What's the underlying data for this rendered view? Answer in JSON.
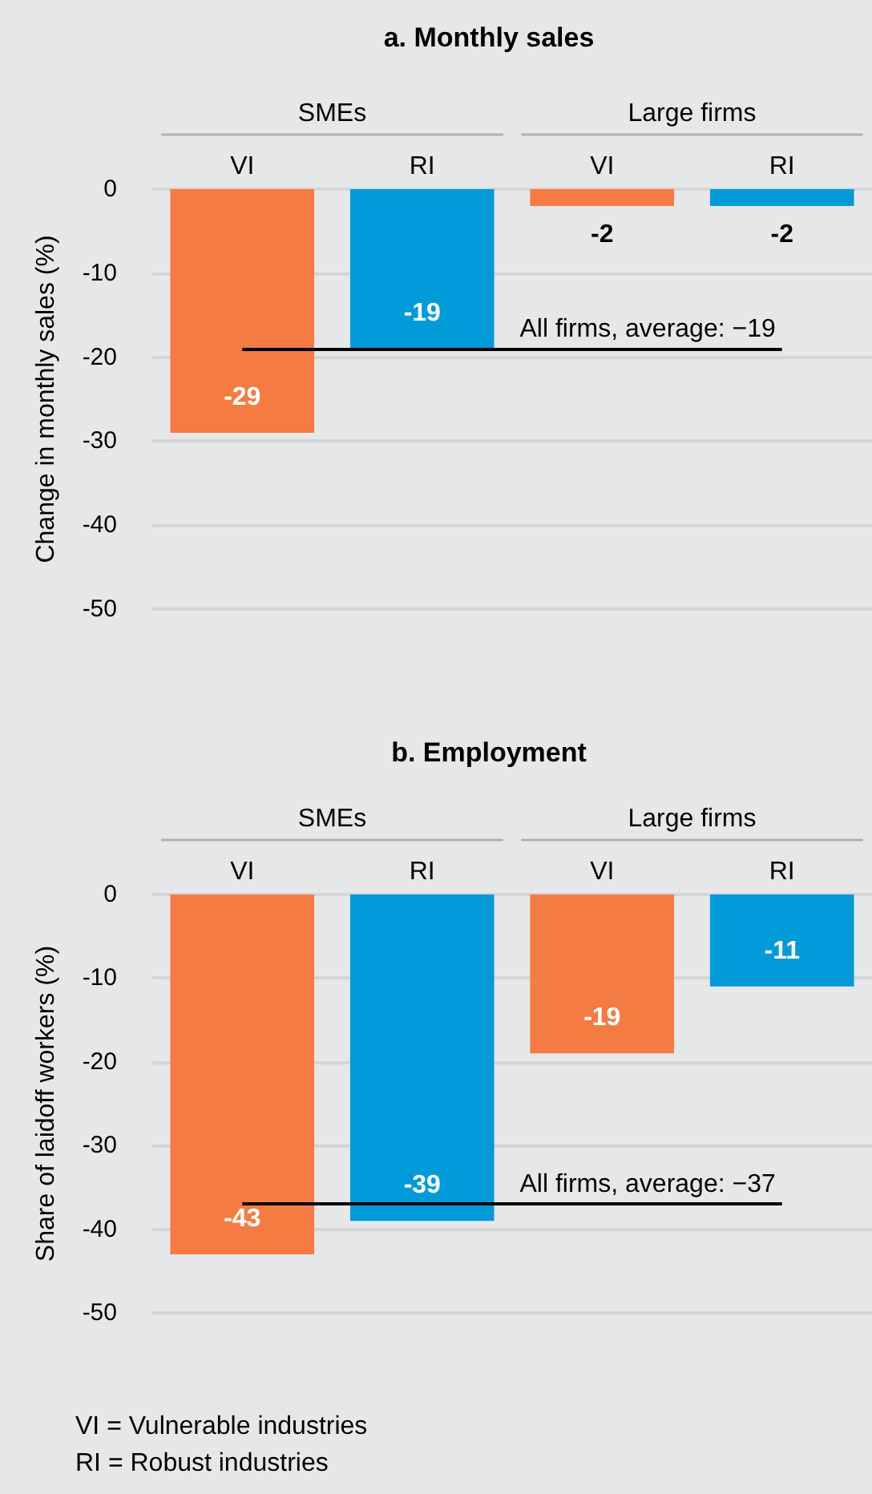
{
  "chart_data": [
    {
      "type": "bar",
      "title": "a. Monthly sales",
      "ylabel": "Change in monthly sales (%)",
      "categories": [
        "VI",
        "RI",
        "VI",
        "RI"
      ],
      "values": [
        -29,
        -19,
        -2,
        -2
      ],
      "colors": [
        "#f47c43",
        "#009ad8",
        "#f47c43",
        "#009ad8"
      ],
      "data_labels": true,
      "ylim": [
        -50,
        0
      ],
      "yticks": [
        -50,
        -40,
        -30,
        -20,
        -10,
        0
      ],
      "grid": "y",
      "ref_lines": [
        {
          "axis": "y",
          "value": -19,
          "label": "All firms, average: −19",
          "color": "#000000"
        }
      ],
      "annotations": [
        "SMEs",
        "Large firms"
      ]
    },
    {
      "type": "bar",
      "title": "b. Employment",
      "ylabel": "Share of laidoff workers (%)",
      "categories": [
        "VI",
        "RI",
        "VI",
        "RI"
      ],
      "values": [
        -43,
        -39,
        -19,
        -11
      ],
      "colors": [
        "#f47c43",
        "#009ad8",
        "#f47c43",
        "#009ad8"
      ],
      "data_labels": true,
      "ylim": [
        -50,
        0
      ],
      "yticks": [
        -50,
        -40,
        -30,
        -20,
        -10,
        0
      ],
      "grid": "y",
      "ref_lines": [
        {
          "axis": "y",
          "value": -37,
          "label": "All firms, average: −37",
          "color": "#000000"
        }
      ],
      "annotations": [
        "SMEs",
        "Large firms",
        "VI = Vulnerable industries",
        "RI = Robust industries"
      ]
    }
  ]
}
